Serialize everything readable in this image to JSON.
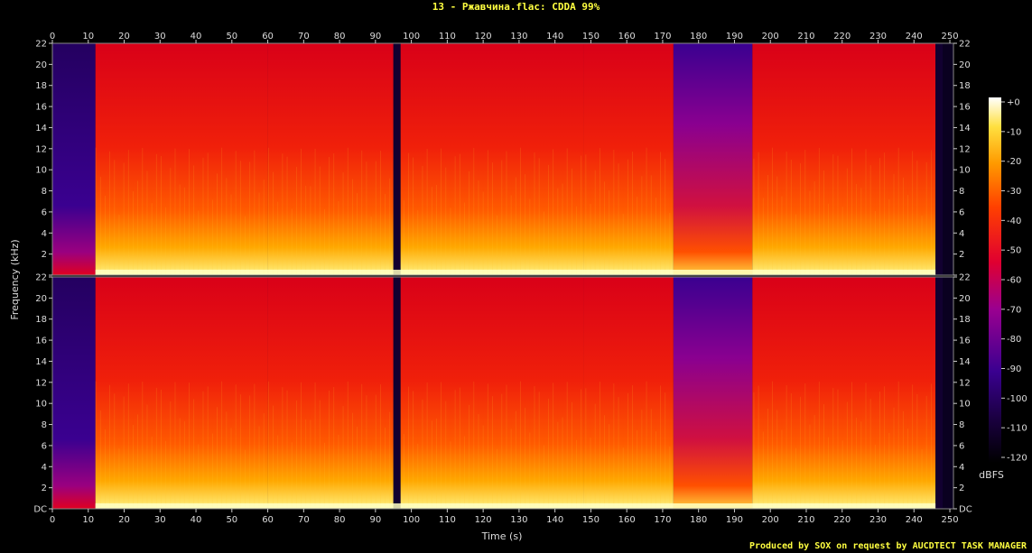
{
  "title": "13 - Ржавчина.flac: CDDA 99%",
  "footer": "Produced by SOX on request by AUCDTECT TASK MANAGER",
  "chart_data": {
    "type": "heatmap",
    "title": "13 - Ржавчина.flac: CDDA 99%",
    "xlabel": "Time (s)",
    "ylabel": "Frequency (kHz)",
    "xlim": [
      0,
      251
    ],
    "ylim": [
      0,
      22
    ],
    "x_ticks": [
      "0",
      "10",
      "20",
      "30",
      "40",
      "50",
      "60",
      "70",
      "80",
      "90",
      "100",
      "110",
      "120",
      "130",
      "140",
      "150",
      "160",
      "170",
      "180",
      "190",
      "200",
      "210",
      "220",
      "230",
      "240",
      "250"
    ],
    "y_ticks": [
      "DC",
      "2",
      "4",
      "6",
      "8",
      "10",
      "12",
      "14",
      "16",
      "18",
      "20",
      "22"
    ],
    "colorbar": {
      "label": "dBFS",
      "ticks": [
        "+0",
        "-10",
        "-20",
        "-30",
        "-40",
        "-50",
        "-60",
        "-70",
        "-80",
        "-90",
        "-100",
        "-110",
        "-120"
      ],
      "range": [
        -120,
        0
      ]
    },
    "channels": [
      "left",
      "right"
    ],
    "segments": [
      {
        "start": 0,
        "end": 12,
        "level": "quiet"
      },
      {
        "start": 12,
        "end": 60,
        "level": "loud"
      },
      {
        "start": 60,
        "end": 95,
        "level": "loud"
      },
      {
        "start": 95,
        "end": 97,
        "level": "silence"
      },
      {
        "start": 97,
        "end": 148,
        "level": "loud"
      },
      {
        "start": 148,
        "end": 173,
        "level": "loud"
      },
      {
        "start": 173,
        "end": 195,
        "level": "fade"
      },
      {
        "start": 195,
        "end": 246,
        "level": "loud"
      },
      {
        "start": 246,
        "end": 248,
        "level": "silence"
      }
    ]
  }
}
